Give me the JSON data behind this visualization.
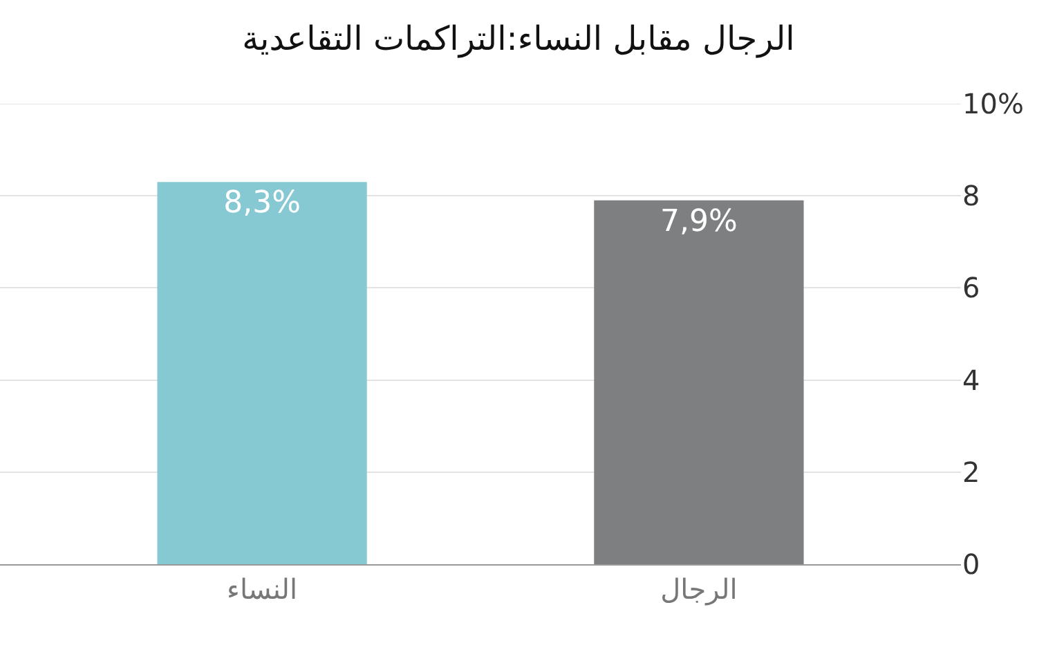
{
  "chart_data": {
    "type": "bar",
    "title": "الرجال مقابل النساء:التراكمات التقاعدية",
    "categories": [
      "النساء",
      "الرجال"
    ],
    "values": [
      8.3,
      7.9
    ],
    "colors": [
      "#86c9d3",
      "#7d7f80"
    ],
    "value_labels": [
      "8,3%",
      "7,9%"
    ],
    "ylim": [
      0,
      10
    ],
    "yticks": [
      0,
      2,
      4,
      6,
      8,
      {
        "value": 10,
        "label": "10%"
      }
    ],
    "grid": "y"
  }
}
